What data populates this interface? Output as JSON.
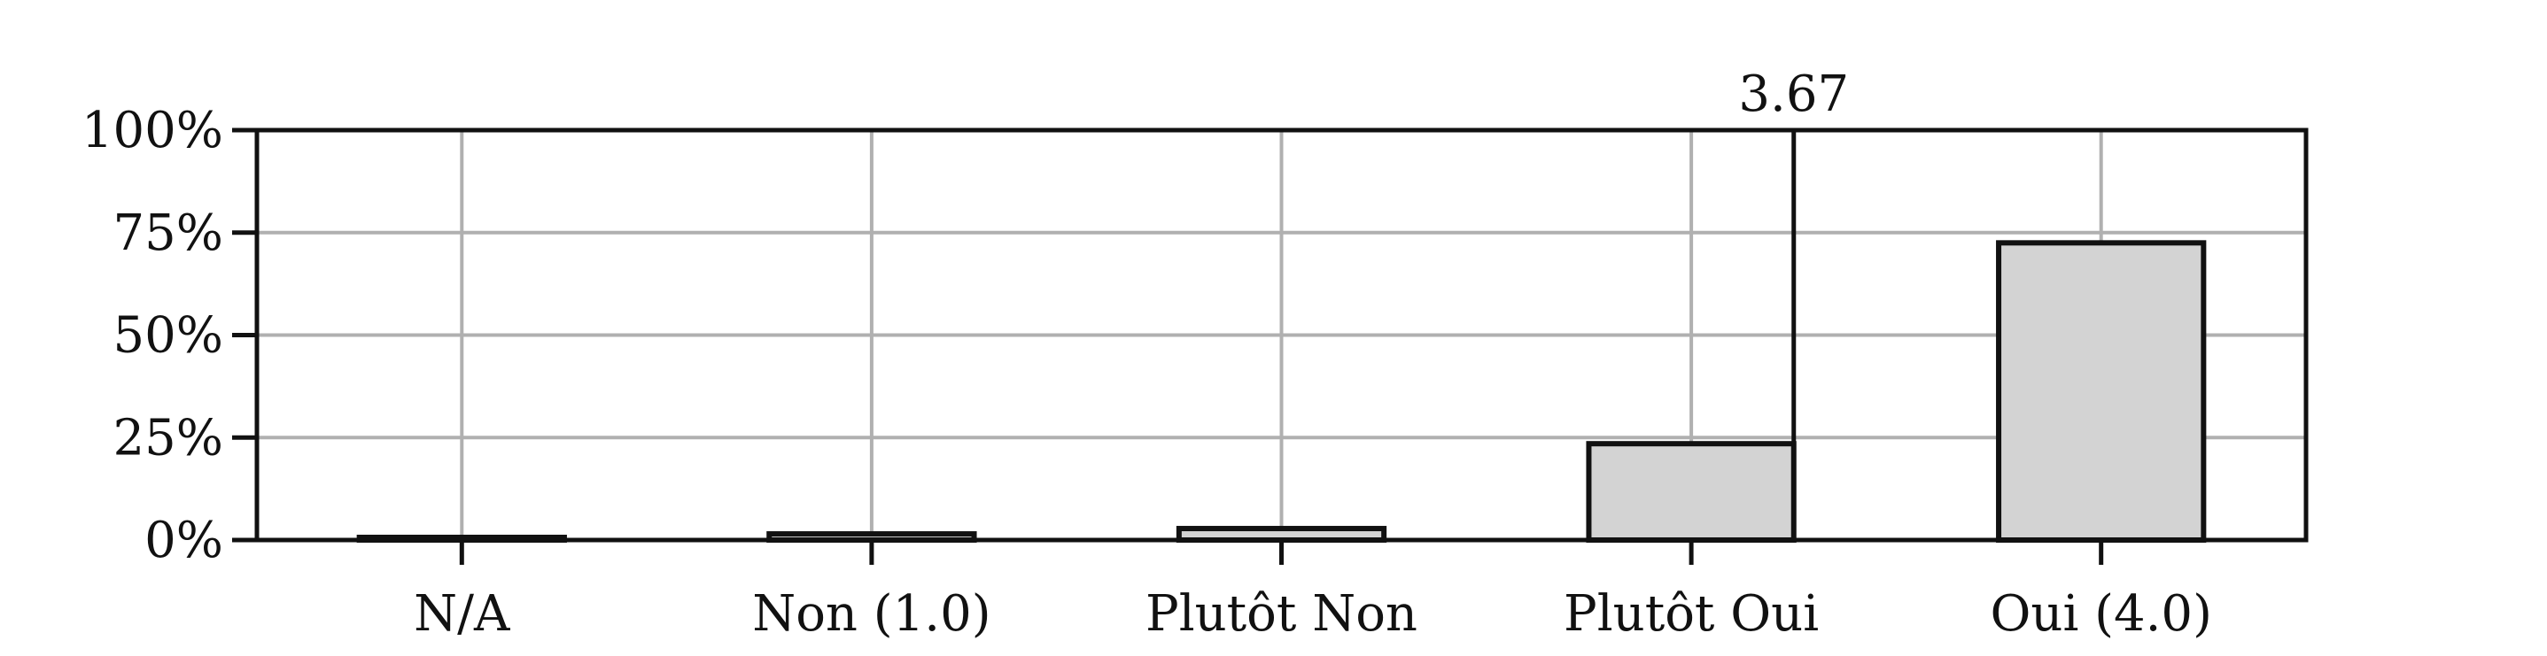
{
  "chart_data": {
    "type": "bar",
    "categories": [
      "N/A",
      "Non (1.0)",
      "Plutôt Non",
      "Plutôt Oui",
      "Oui (4.0)"
    ],
    "values": [
      0.3,
      1.5,
      2.8,
      23.5,
      72.5
    ],
    "ylim": [
      0,
      100
    ],
    "yticks": [
      0,
      25,
      50,
      75,
      100
    ],
    "ytick_labels": [
      "0%",
      "25%",
      "50%",
      "75%",
      "100%"
    ],
    "grid": true,
    "mean": {
      "value": 3.67,
      "label": "3.67"
    },
    "title": "",
    "xlabel": "",
    "ylabel": "",
    "colors": {
      "bar_fill": "#d3d3d3",
      "bar_edge": "#111111",
      "grid": "#b0b0b0",
      "axes": "#111111"
    }
  }
}
